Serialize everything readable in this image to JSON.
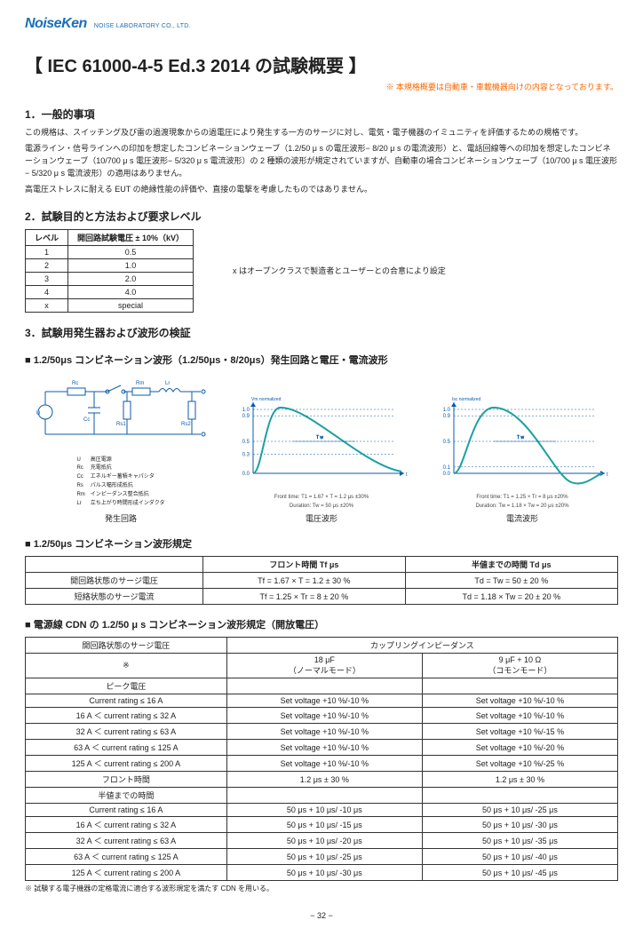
{
  "logo": "NoiseKen",
  "logo_sub": "NOISE LABORATORY CO., LTD.",
  "title": "【 IEC 61000-4-5 Ed.3 2014 の試験概要 】",
  "title_note": "※ 本規格概要は自動車・車載機器向けの内容となっております。",
  "sec1_h": "1．一般的事項",
  "sec1_p1": "この規格は、スイッチング及び雷の過渡現象からの過電圧により発生する一方のサージに対し、電気・電子機器のイミュニティを評価するための規格です。",
  "sec1_p2": "電源ライン・信号ラインへの印加を想定したコンビネーションウェーブ（1.2/50 μ s の電圧波形− 8/20 μ s の電流波形）と、電話回線等への印加を想定したコンビネーションウェーブ（10/700 μ s 電圧波形− 5/320 μ s 電流波形）の 2 種類の波形が規定されていますが、自動車の場合コンビネーションウェーブ（10/700 μ s 電圧波形− 5/320 μ s 電流波形）の適用はありません。",
  "sec1_p3": "高電圧ストレスに耐える EUT の絶縁性能の評価や、直接の電撃を考慮したものではありません。",
  "sec2_h": "2．試験目的と方法および要求レベル",
  "lvltbl": {
    "head": [
      "レベル",
      "開回路試験電圧 ± 10%（kV）"
    ],
    "rows": [
      [
        "1",
        "0.5"
      ],
      [
        "2",
        "1.0"
      ],
      [
        "3",
        "2.0"
      ],
      [
        "4",
        "4.0"
      ],
      [
        "x",
        "special"
      ]
    ]
  },
  "lvl_note": "x はオープンクラスで製造者とユーザーとの合意により設定",
  "sec3_h": "3．試験用発生器および波形の検証",
  "sec3_sub1": "■ 1.2/50μs コンビネーション波形（1.2/50μs・8/20μs）発生回路と電圧・電流波形",
  "diagram": {
    "circuit": {
      "labels": {
        "Rc": "Rc",
        "Rs1": "Rs1",
        "Rm": "Rm",
        "Lr": "Lr",
        "Cc": "Cc",
        "U": "U",
        "Rs2": "Rs2"
      },
      "legend": [
        [
          "U",
          "高圧電源"
        ],
        [
          "Rc",
          "充電抵抗"
        ],
        [
          "Cc",
          "エネルギー蓄積キャパシタ"
        ],
        [
          "Rs",
          "パルス幅形成抵抗"
        ],
        [
          "Rm",
          "インピーダンス整合抵抗"
        ],
        [
          "Lr",
          "立ち上がり時間形成インダクタ"
        ]
      ],
      "caption": "発生回路"
    },
    "voltage": {
      "ylim": [
        0,
        1.0
      ],
      "ytick": [
        0,
        0.3,
        0.5,
        0.9,
        1.0
      ],
      "curve_color": "#1ba0a0",
      "axis_color": "#0b5ba8",
      "caption": "電圧波形",
      "meta1": "Front time: T1 = 1.67 × T = 1.2 μs ±30%",
      "meta2": "Duration: Tw = 50 μs ±20%",
      "ylabel": "Vm normalized"
    },
    "current": {
      "ylim": [
        0,
        1.0
      ],
      "ytick": [
        0,
        0.1,
        0.5,
        0.9,
        1.0
      ],
      "curve_color": "#1ba0a0",
      "axis_color": "#0b5ba8",
      "caption": "電流波形",
      "meta1": "Front time: T1 = 1.25 × Tr = 8 μs ±20%",
      "meta2": "Duration: Tw = 1.18 × Tw = 20 μs ±20%",
      "ylabel": "Isc normalized"
    }
  },
  "sec3_sub2": "■ 1.2/50μs コンビネーション波形規定",
  "comb_tbl": {
    "head": [
      "",
      "フロント時間 Tf  μs",
      "半値までの時間 Td  μs"
    ],
    "rows": [
      [
        "開回路状態のサージ電圧",
        "Tf = 1.67 × T = 1.2 ± 30 %",
        "Td = Tw = 50 ± 20 %"
      ],
      [
        "短絡状態のサージ電流",
        "Tf = 1.25 × Tr = 8 ± 20 %",
        "Td = 1.18 × Tw = 20 ± 20 %"
      ]
    ]
  },
  "sec3_sub3": "■ 電源線 CDN の 1.2/50 μ s コンビネーション波形規定（開放電圧）",
  "cdn_tbl": {
    "row_surge": "開回路状態のサージ電圧",
    "row_sym": "※",
    "coupling_head": "カップリングインピーダンス",
    "col_18": "18 μF",
    "col_18_sub": "（ノーマルモード）",
    "col_9": "9 μF + 10 Ω",
    "col_9_sub": "（コモンモード）",
    "peak_head": "ピーク電圧",
    "peak_rows": [
      [
        "Current rating ≤ 16 A",
        "Set voltage +10 %/-10 %",
        "Set voltage +10 %/-10 %"
      ],
      [
        "16 A ＜ current rating ≤ 32 A",
        "Set voltage +10 %/-10 %",
        "Set voltage +10 %/-10 %"
      ],
      [
        "32 A ＜ current rating ≤ 63 A",
        "Set voltage +10 %/-10 %",
        "Set voltage +10 %/-15 %"
      ],
      [
        "63 A ＜ current rating ≤ 125 A",
        "Set voltage +10 %/-10 %",
        "Set voltage +10 %/-20 %"
      ],
      [
        "125 A ＜ current rating ≤ 200 A",
        "Set voltage +10 %/-10 %",
        "Set voltage +10 %/-25 %"
      ]
    ],
    "front_head": "フロント時間",
    "front_row": [
      "",
      "1.2 μs ± 30 %",
      "1.2 μs ± 30 %"
    ],
    "half_head": "半値までの時間",
    "half_rows": [
      [
        "Current rating ≤ 16 A",
        "50 μs + 10 μs/ -10 μs",
        "50 μs + 10 μs/ -25 μs"
      ],
      [
        "16 A ＜ current rating ≤ 32 A",
        "50 μs + 10 μs/ -15 μs",
        "50 μs + 10 μs/ -30 μs"
      ],
      [
        "32 A ＜ current rating ≤ 63 A",
        "50 μs + 10 μs/ -20 μs",
        "50 μs + 10 μs/ -35 μs"
      ],
      [
        "63 A ＜ current rating ≤ 125 A",
        "50 μs + 10 μs/ -25 μs",
        "50 μs + 10 μs/ -40 μs"
      ],
      [
        "125 A ＜ current rating ≤ 200 A",
        "50 μs + 10 μs/ -30 μs",
        "50 μs + 10 μs/ -45 μs"
      ]
    ]
  },
  "cdn_note": "※ 試験する電子機器の定格電流に適合する波形規定を満たす CDN を用いる。",
  "page_num": "− 32 −"
}
